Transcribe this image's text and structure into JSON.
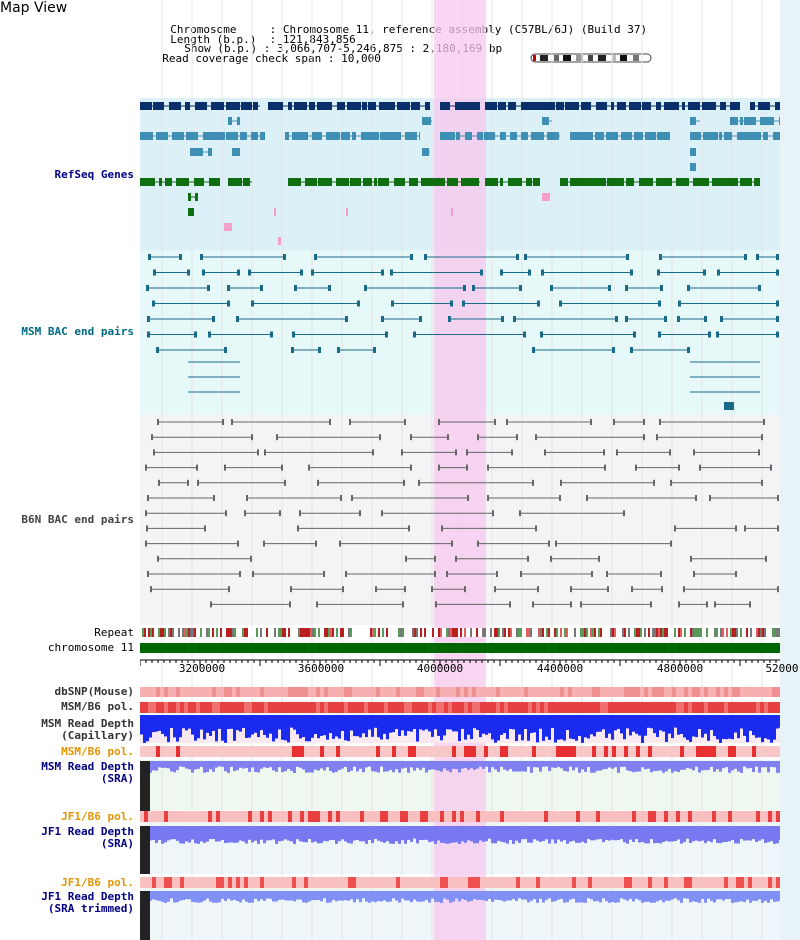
{
  "app": {
    "title": "Map View"
  },
  "info": {
    "chromosome_key": "Chromosome",
    "chromosome_value": "Chromosome 11, reference assembly (C57BL/6J) (Build 37)",
    "length_key": "Length (b.p.)",
    "length_value": "121,843,856",
    "show_key": "Show (b.p.)",
    "show_value": "3,066,707-5,246,875 : 2,180,169 bp",
    "coverage_key": "Read coverage check span",
    "coverage_value": "10,000"
  },
  "tracks": {
    "refseq": "RefSeq Genes",
    "msm_bac": "MSM BAC end pairs",
    "b6n_bac": "B6N BAC end pairs",
    "repeat": "Repeat",
    "chromosome": "chromosome 11",
    "dbsnp": "dbSNP(Mouse)",
    "msm_b6_pol_1": "MSM/B6 pol.",
    "msm_read_depth_cap_1": "MSM Read Depth",
    "msm_read_depth_cap_2": "(Capillary)",
    "msm_b6_pol_2": "MSM/B6 pol.",
    "msm_read_depth_sra_1": "MSM Read Depth",
    "msm_read_depth_sra_2": "(SRA)",
    "jf1_b6_pol_1": "JF1/B6 pol.",
    "jf1_read_depth_sra_1": "JF1 Read Depth",
    "jf1_read_depth_sra_2": "(SRA)",
    "jf1_b6_pol_2": "JF1/B6 pol.",
    "jf1_read_depth_trim_1": "JF1 Read Depth",
    "jf1_read_depth_trim_2": "(SRA trimmed)"
  },
  "axis": {
    "ticks": [
      "3200000",
      "3600000",
      "4000000",
      "4400000",
      "4800000",
      "52000"
    ]
  },
  "colors": {
    "gene_dark": "#0a2f6b",
    "gene_mid": "#3f8fb5",
    "gene_green": "#0f6e0f",
    "msm_bac": "#1a6a8a",
    "b6n_bac": "#666666",
    "highlight": "#f7c8ee",
    "chromosome_bar": "#006600",
    "label_blue": "#000080",
    "label_teal": "#006a80",
    "label_orange": "#e69500"
  }
}
